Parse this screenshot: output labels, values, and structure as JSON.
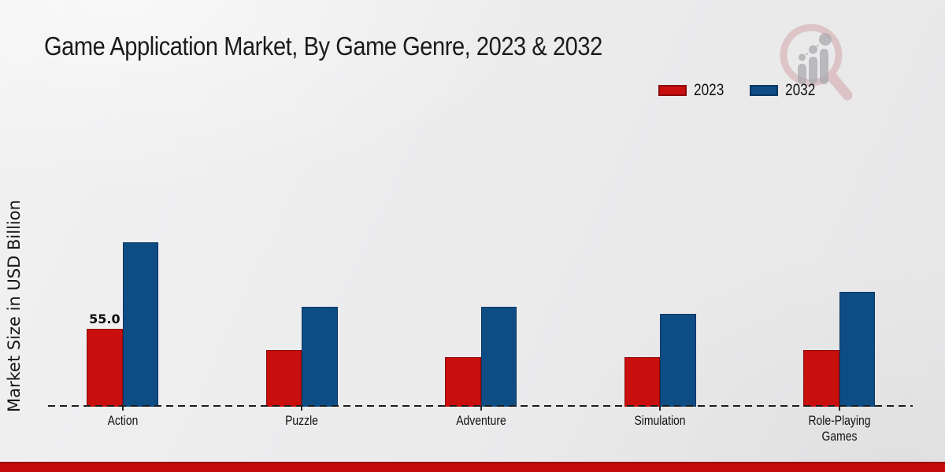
{
  "chart_data": {
    "type": "bar",
    "title": "Game Application Market, By Game Genre, 2023 & 2032",
    "ylabel": "Market Size in USD Billion",
    "xlabel": "",
    "categories": [
      "Action",
      "Puzzle",
      "Adventure",
      "Simulation",
      "Role-Playing Games"
    ],
    "series": [
      {
        "name": "2023",
        "color": "#c90e0e",
        "edge_color": "#8c0a0a",
        "values": [
          55.0,
          40.0,
          35.0,
          35.0,
          40.0
        ]
      },
      {
        "name": "2032",
        "color": "#0e4c84",
        "edge_color": "#0a3763",
        "values": [
          116.5,
          71.0,
          71.0,
          65.5,
          81.5
        ]
      }
    ],
    "data_labels": [
      {
        "series_index": 0,
        "category_index": 0,
        "text": "55.0"
      }
    ],
    "legend_position": "top-right",
    "baseline_style": "dashed",
    "grid": false,
    "y_ticks_visible": false,
    "ylim": [
      0,
      130
    ]
  },
  "watermark": {
    "icon": "magnifier-bar-chart-logo-watermark"
  },
  "colors": {
    "background": "#ebebec",
    "axis_line": "#1c1c1c",
    "footer_bar": "#c30b0b",
    "footer_bar_edge": "#9a0707",
    "text": "#111111"
  }
}
